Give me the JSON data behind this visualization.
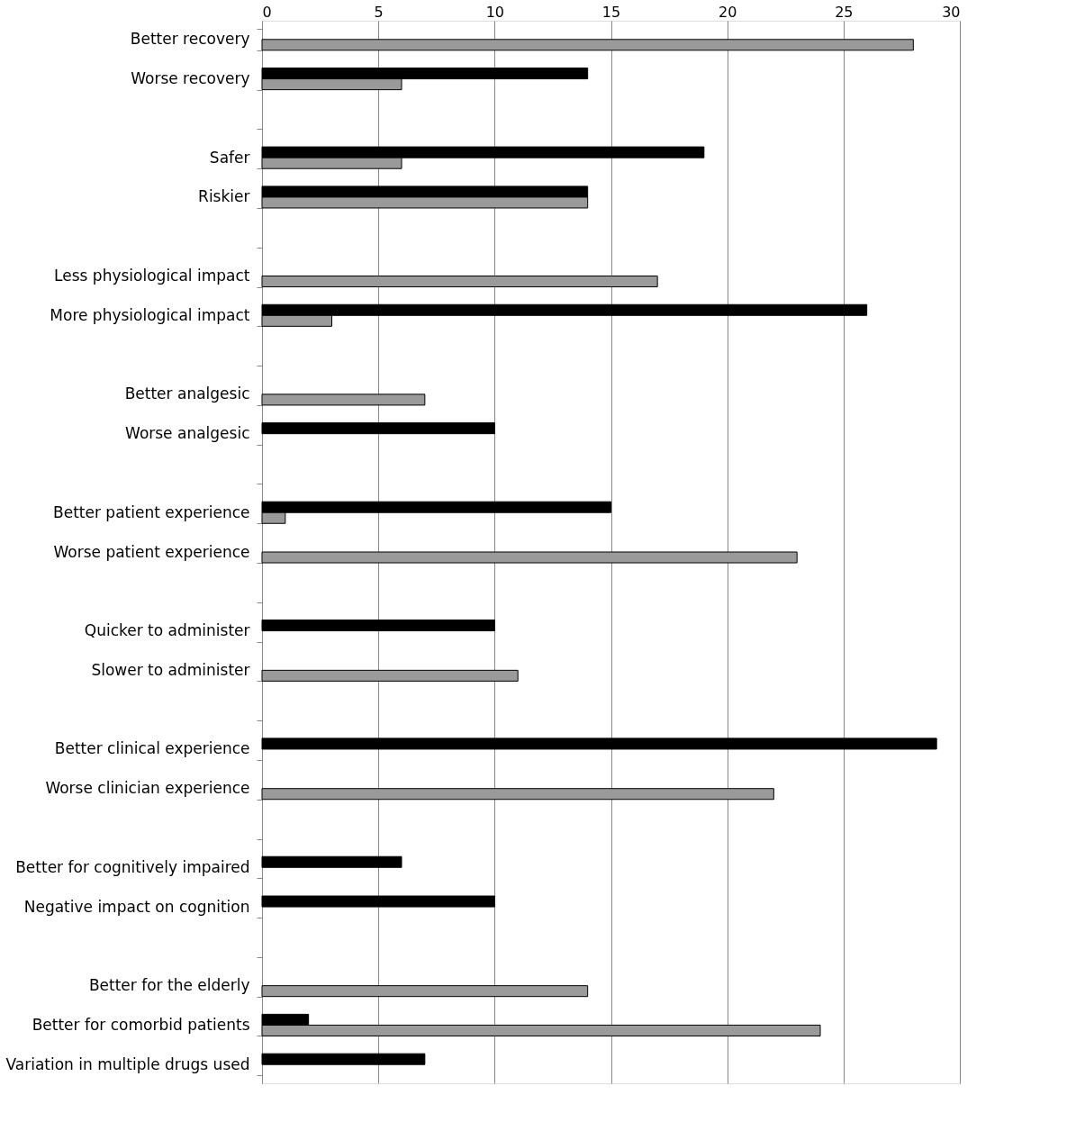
{
  "chart_data": {
    "type": "bar",
    "orientation": "horizontal",
    "categories": [
      "Better recovery",
      "Worse recovery",
      null,
      "Safer",
      "Riskier",
      null,
      "Less physiological impact",
      "More physiological impact",
      null,
      "Better analgesic",
      "Worse analgesic",
      null,
      "Better patient experience",
      "Worse patient experience",
      null,
      "Quicker to administer",
      "Slower to administer",
      null,
      "Better clinical experience",
      "Worse clinician experience",
      null,
      "Better for cognitively impaired",
      "Negative impact on cognition",
      null,
      "Better for the elderly",
      "Better for comorbid patients",
      "Variation in multiple drugs used"
    ],
    "series": [
      {
        "color": "#000000",
        "values": [
          null,
          14,
          null,
          19,
          14,
          null,
          null,
          26,
          null,
          null,
          10,
          null,
          15,
          null,
          null,
          10,
          null,
          null,
          29,
          null,
          null,
          6,
          10,
          null,
          null,
          2,
          7
        ]
      },
      {
        "color": "#9a9a9a",
        "values": [
          28,
          6,
          null,
          6,
          14,
          null,
          17,
          3,
          null,
          7,
          null,
          null,
          1,
          23,
          null,
          null,
          11,
          null,
          null,
          22,
          null,
          null,
          null,
          null,
          14,
          24,
          null
        ]
      }
    ],
    "xlim": [
      0,
      30
    ],
    "xticks": [
      0,
      5,
      10,
      15,
      20,
      25,
      30
    ],
    "grid": "x",
    "legend": false
  }
}
